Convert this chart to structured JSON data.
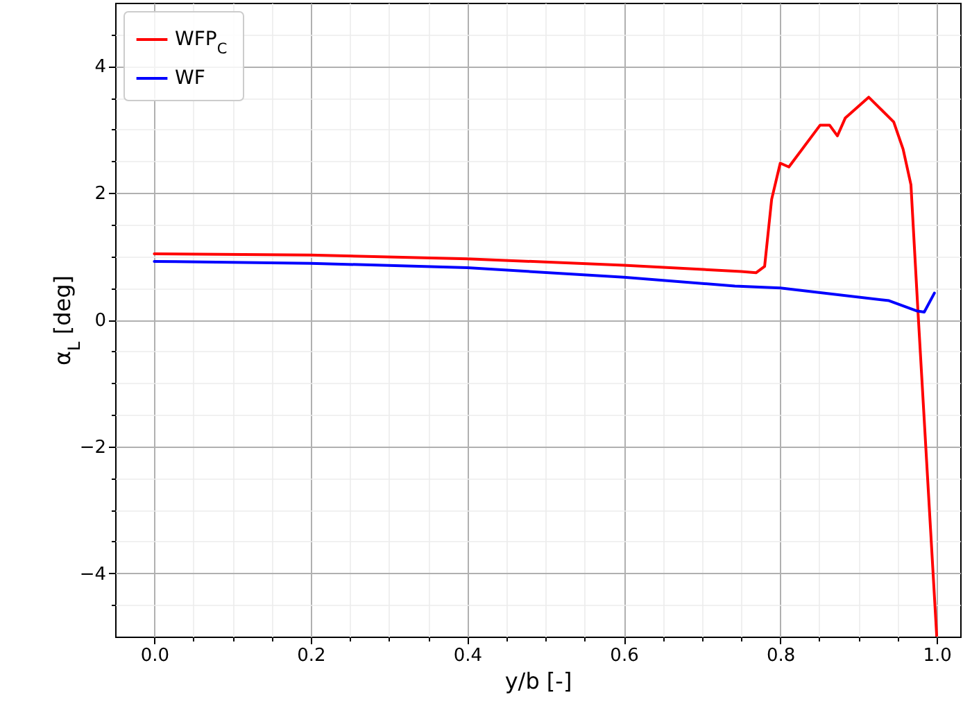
{
  "chart_data": {
    "type": "line",
    "xlabel": "y/b [-]",
    "ylabel": "α$_{L}$ [deg]",
    "xlim": [
      -0.05,
      1.03
    ],
    "ylim": [
      -5,
      5
    ],
    "xticks": [
      {
        "value": 0,
        "label": "0.0"
      },
      {
        "value": 0.05,
        "label": null
      },
      {
        "value": 0.1,
        "label": null
      },
      {
        "value": 0.15,
        "label": null
      },
      0.2,
      {
        "value": 0.25,
        "label": null
      },
      {
        "value": 0.3,
        "label": null
      },
      {
        "value": 0.35,
        "label": null
      },
      0.4,
      {
        "value": 0.45,
        "label": null
      },
      {
        "value": 0.5,
        "label": null
      },
      {
        "value": 0.55,
        "label": null
      },
      0.6,
      {
        "value": 0.65,
        "label": null
      },
      {
        "value": 0.7,
        "label": null
      },
      {
        "value": 0.75,
        "label": null
      },
      0.8,
      {
        "value": 0.85,
        "label": null
      },
      {
        "value": 0.9,
        "label": null
      },
      {
        "value": 0.95,
        "label": null
      },
      {
        "value": 1,
        "label": "1.0"
      }
    ],
    "yticks": [
      {
        "value": -4.5,
        "label": null
      },
      {
        "value": -4,
        "label": "−4"
      },
      {
        "value": -3.5,
        "label": null
      },
      {
        "value": -3,
        "label": null
      },
      {
        "value": -2.5,
        "label": null
      },
      {
        "value": -2,
        "label": "−2"
      },
      {
        "value": -1.5,
        "label": null
      },
      {
        "value": -1,
        "label": null
      },
      {
        "value": -0.5,
        "label": null
      },
      0,
      {
        "value": 0.5,
        "label": null
      },
      {
        "value": 1,
        "label": null
      },
      {
        "value": 1.5,
        "label": null
      },
      2,
      {
        "value": 2.5,
        "label": null
      },
      {
        "value": 3,
        "label": null
      },
      {
        "value": 3.5,
        "label": null
      },
      4,
      {
        "value": 4.5,
        "label": null
      }
    ],
    "grid": true,
    "legend": "top left",
    "line_style": "solid",
    "series": [
      {
        "name": "WFP$_{C}$",
        "color": "#ff0000",
        "x": [
          0,
          0.2,
          0.4,
          0.6,
          0.75,
          0.769,
          0.78,
          0.789,
          0.8,
          0.811,
          0.851,
          0.863,
          0.873,
          0.883,
          0.913,
          0.945,
          0.957,
          0.967,
          0.976,
          1.0
        ],
        "values": [
          1.04,
          1.02,
          0.96,
          0.86,
          0.76,
          0.74,
          0.84,
          1.9,
          2.47,
          2.41,
          3.07,
          3.07,
          2.9,
          3.18,
          3.51,
          3.12,
          2.69,
          2.13,
          0.13,
          -5
        ]
      },
      {
        "name": "WF",
        "color": "#0000ff",
        "x": [
          0,
          0.2,
          0.4,
          0.6,
          0.742,
          0.8,
          0.939,
          0.974,
          0.984,
          0.997
        ],
        "values": [
          0.92,
          0.89,
          0.82,
          0.67,
          0.53,
          0.5,
          0.3,
          0.14,
          0.12,
          0.42
        ]
      }
    ]
  }
}
